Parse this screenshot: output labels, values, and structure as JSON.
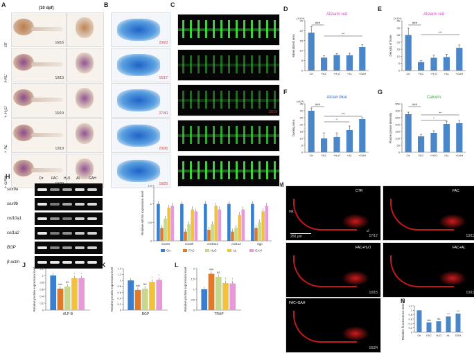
{
  "panels": {
    "A": "A",
    "B": "B",
    "C": "C",
    "D": "D",
    "E": "E",
    "F": "F",
    "G": "G",
    "H": "H",
    "I": "I",
    "J": "J",
    "K": "K",
    "L": "L",
    "M": "M",
    "N": "N"
  },
  "panelA": {
    "header": "(10 dpf)",
    "rows": [
      "ctr",
      "FAC",
      "+ H₂O",
      "+ AL",
      "+ GAH"
    ],
    "ratios": [
      "16/16",
      "10/13",
      "15/19",
      "13/19",
      "18/22"
    ]
  },
  "panelB": {
    "ratios": [
      "23/23",
      "15/17",
      "27/40",
      "23/36",
      "19/23"
    ]
  },
  "panelC": {
    "ratios": [
      "",
      "",
      "18/19",
      "",
      ""
    ]
  },
  "panelH": {
    "lanes": [
      "Ctr",
      "FAC",
      "H₂O",
      "AL",
      "GAH"
    ],
    "genes": [
      "sox9a",
      "sox9b",
      "col10a1",
      "col1a2",
      "BGP",
      "β-actin"
    ]
  },
  "panelM": {
    "labels": [
      "CTR",
      "FAC",
      "FAC+H₂O",
      "FAC+AL",
      "FAC+GAH"
    ],
    "ratios": [
      "17/17",
      "13/13",
      "10/15",
      "13/19",
      "16/24"
    ],
    "scale": "250 μm",
    "mk": "mk",
    "cl": "cl"
  },
  "colors": {
    "bar_blue": "#4a86c8",
    "ctr": "#3a7fcf",
    "fac": "#e07a2a",
    "h2o": "#c8d88a",
    "al": "#f3c23c",
    "gah": "#e79ad8"
  },
  "chart_data": [
    {
      "id": "D",
      "type": "bar",
      "title": "Alizarin red",
      "ylabel": "Mineralized area",
      "unit": "(X10⁴)",
      "categories": [
        "Ctr",
        "FAC",
        "+H₂O",
        "+AL",
        "+GAH"
      ],
      "values": [
        19,
        6.5,
        7.8,
        7.7,
        11.8
      ],
      "errors": [
        3,
        1,
        0.8,
        1,
        1.2
      ],
      "ylim": [
        0,
        25
      ],
      "yticks": [
        0,
        5,
        10,
        15,
        20,
        25
      ],
      "sig": [
        "###",
        "**"
      ]
    },
    {
      "id": "E",
      "type": "bar",
      "title": "Alizarin red",
      "ylabel": "Density of bone",
      "unit": "(X10⁴)",
      "categories": [
        "Ctr",
        "FAC",
        "+H₂O",
        "+AL",
        "+GAH"
      ],
      "values": [
        25,
        6,
        9,
        9.5,
        16
      ],
      "errors": [
        5,
        1,
        2,
        2,
        2
      ],
      "ylim": [
        0,
        35
      ],
      "yticks": [
        0,
        5,
        10,
        15,
        20,
        25,
        30,
        35
      ],
      "sig": [
        "###",
        "***"
      ]
    },
    {
      "id": "F",
      "type": "bar",
      "title": "Alcian blue",
      "ylabel": "Dyeing area",
      "unit": "(x10⁴)",
      "categories": [
        "Ctr",
        "FAC",
        "+H₂O",
        "+AL",
        "+GAH"
      ],
      "values": [
        30,
        10,
        11,
        16,
        24
      ],
      "errors": [
        2,
        4,
        3,
        3,
        1
      ],
      "ylim": [
        0,
        35
      ],
      "yticks": [
        0,
        5,
        10,
        15,
        20,
        25,
        30,
        35
      ],
      "sig": [
        "###",
        "*",
        "***"
      ]
    },
    {
      "id": "G",
      "type": "bar",
      "title": "Calcein",
      "ylabel": "Fluorescence intensity",
      "unit": "",
      "categories": [
        "Ctr",
        "FAC",
        "+H2O",
        "+AL",
        "+GAH"
      ],
      "values": [
        275,
        115,
        140,
        205,
        210
      ],
      "errors": [
        15,
        15,
        15,
        20,
        20
      ],
      "ylim": [
        0,
        350
      ],
      "yticks": [
        0,
        50,
        100,
        150,
        200,
        250,
        300,
        350
      ],
      "sig": [
        "###",
        "*",
        "**"
      ]
    },
    {
      "id": "I",
      "type": "bar",
      "ylabel": "Relative mRNA expression level",
      "categories": [
        "sox9a",
        "sox9b",
        "col10a1",
        "col1a2",
        "bgp"
      ],
      "series": [
        {
          "name": "Ctr",
          "values": [
            1,
            1,
            1,
            1,
            1
          ]
        },
        {
          "name": "FAC",
          "values": [
            0.35,
            0.25,
            0.3,
            0.25,
            0.35
          ]
        },
        {
          "name": "H₂O",
          "values": [
            0.6,
            0.45,
            0.45,
            0.35,
            0.5
          ]
        },
        {
          "name": "AL",
          "values": [
            0.9,
            0.85,
            0.95,
            0.7,
            0.8
          ]
        },
        {
          "name": "GAH",
          "values": [
            0.95,
            0.8,
            0.85,
            0.85,
            0.95
          ]
        }
      ],
      "ylim": [
        0,
        1.5
      ],
      "yticks": [
        0,
        0.5,
        1,
        1.5
      ],
      "legend": [
        "Ctr",
        "FAC",
        "H₂O",
        "AL",
        "GAH"
      ]
    },
    {
      "id": "J",
      "type": "bar",
      "xlabel": "ALP-B",
      "ylabel": "Relative protein expression level",
      "series": [
        {
          "name": "Ctr",
          "values": [
            1
          ]
        },
        {
          "name": "FAC",
          "values": [
            0.62
          ]
        },
        {
          "name": "H₂O",
          "values": [
            0.68
          ]
        },
        {
          "name": "AL",
          "values": [
            0.92
          ]
        },
        {
          "name": "GAH",
          "values": [
            0.92
          ]
        }
      ],
      "ylim": [
        0,
        1.2
      ],
      "yticks": [
        0,
        0.2,
        0.4,
        0.6,
        0.8,
        1.0,
        1.2
      ],
      "sig": [
        "###",
        "NS",
        "*",
        "*"
      ]
    },
    {
      "id": "K",
      "type": "bar",
      "xlabel": "BGP",
      "ylabel": "Relative protein expression level",
      "series": [
        {
          "name": "Ctr",
          "values": [
            1
          ]
        },
        {
          "name": "FAC",
          "values": [
            0.68
          ]
        },
        {
          "name": "H₂O",
          "values": [
            0.72
          ]
        },
        {
          "name": "AL",
          "values": [
            0.95
          ]
        },
        {
          "name": "GAH",
          "values": [
            1.02
          ]
        }
      ],
      "ylim": [
        0,
        1.4
      ],
      "yticks": [
        0,
        0.2,
        0.4,
        0.6,
        0.8,
        1.0,
        1.2,
        1.4
      ],
      "sig": [
        "###",
        "NS",
        "*",
        "*"
      ]
    },
    {
      "id": "L",
      "type": "bar",
      "xlabel": "TRAP",
      "ylabel": "Relative protein expression level",
      "series": [
        {
          "name": "Ctr",
          "values": [
            1
          ]
        },
        {
          "name": "FAC",
          "values": [
            1.75
          ]
        },
        {
          "name": "H₂O",
          "values": [
            1.6
          ]
        },
        {
          "name": "AL",
          "values": [
            1.3
          ]
        },
        {
          "name": "GAH",
          "values": [
            1.28
          ]
        }
      ],
      "ylim": [
        0,
        2
      ],
      "yticks": [
        0,
        0.5,
        1.0,
        1.5,
        2.0
      ],
      "sig": [
        "###",
        "NS",
        "*",
        "*"
      ]
    },
    {
      "id": "N",
      "type": "bar",
      "ylabel": "Relative fluorescence intensity",
      "categories": [
        "Ctr",
        "FAC",
        "H₂O",
        "AL",
        "GAH"
      ],
      "values": [
        1,
        0.45,
        0.5,
        0.72,
        0.85
      ],
      "ylim": [
        0,
        1.2
      ],
      "yticks": [
        0,
        0.2,
        0.4,
        0.6,
        0.8,
        1.0,
        1.2
      ],
      "sig": [
        "###",
        "NS",
        "***",
        "***"
      ]
    }
  ]
}
